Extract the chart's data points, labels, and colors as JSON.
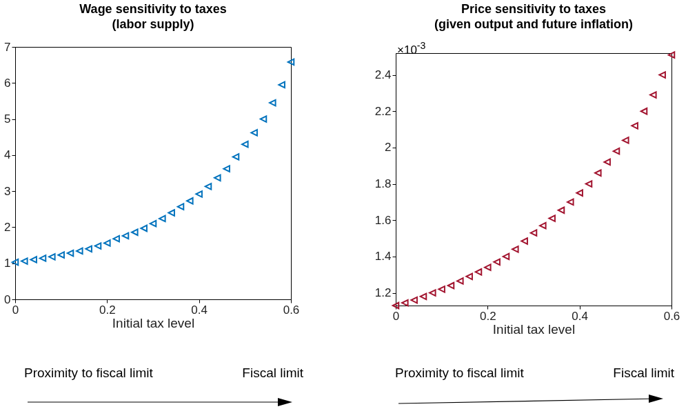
{
  "chart_data": [
    {
      "type": "scatter",
      "title": "Wage sensitivity to taxes",
      "subtitle": "(labor supply)",
      "xlabel": "Initial tax level",
      "marker": "triangle",
      "grid": false,
      "legend": false,
      "x": [
        0,
        0.02,
        0.04,
        0.06,
        0.08,
        0.1,
        0.12,
        0.14,
        0.16,
        0.18,
        0.2,
        0.22,
        0.24,
        0.26,
        0.28,
        0.3,
        0.32,
        0.34,
        0.36,
        0.38,
        0.4,
        0.42,
        0.44,
        0.46,
        0.48,
        0.5,
        0.52,
        0.54,
        0.56,
        0.58,
        0.6
      ],
      "series": [
        {
          "color": "#0072bd",
          "values": [
            1.03,
            1.06,
            1.1,
            1.14,
            1.18,
            1.23,
            1.28,
            1.34,
            1.4,
            1.48,
            1.56,
            1.68,
            1.76,
            1.86,
            1.97,
            2.1,
            2.24,
            2.4,
            2.57,
            2.73,
            2.92,
            3.13,
            3.37,
            3.62,
            3.95,
            4.3,
            4.62,
            5.0,
            5.45,
            5.95,
            6.58
          ]
        }
      ],
      "xlim": [
        0,
        0.6
      ],
      "xticks": [
        0,
        0.2,
        0.4,
        0.6
      ],
      "ylim": [
        0,
        7
      ],
      "yticks": [
        0,
        1,
        2,
        3,
        4,
        5,
        6,
        7
      ],
      "annotations": [
        "Proximity to fiscal limit",
        "Fiscal limit"
      ]
    },
    {
      "type": "scatter",
      "title": "Price sensitivity to taxes",
      "subtitle": "(given output and future inflation)",
      "xlabel": "Initial tax level",
      "marker": "triangle",
      "grid": false,
      "legend": false,
      "x": [
        0,
        0.02,
        0.04,
        0.06,
        0.08,
        0.1,
        0.12,
        0.14,
        0.16,
        0.18,
        0.2,
        0.22,
        0.24,
        0.26,
        0.28,
        0.3,
        0.32,
        0.34,
        0.36,
        0.38,
        0.4,
        0.42,
        0.44,
        0.46,
        0.48,
        0.5,
        0.52,
        0.54,
        0.56,
        0.58,
        0.6
      ],
      "series": [
        {
          "color": "#a2142f",
          "values": [
            1.13,
            1.145,
            1.16,
            1.18,
            1.2,
            1.22,
            1.24,
            1.265,
            1.29,
            1.315,
            1.34,
            1.37,
            1.4,
            1.44,
            1.485,
            1.53,
            1.57,
            1.61,
            1.655,
            1.7,
            1.75,
            1.8,
            1.86,
            1.92,
            1.98,
            2.04,
            2.12,
            2.2,
            2.29,
            2.4,
            2.51
          ]
        }
      ],
      "xlim": [
        0,
        0.6
      ],
      "xticks": [
        0,
        0.2,
        0.4,
        0.6
      ],
      "ylim": [
        1.13,
        2.52
      ],
      "yticks": [
        1.2,
        1.4,
        1.6,
        1.8,
        2,
        2.2,
        2.4
      ],
      "annotations": [
        "×10$^{-3}$",
        "Proximity to fiscal limit",
        "Fiscal limit"
      ]
    }
  ]
}
